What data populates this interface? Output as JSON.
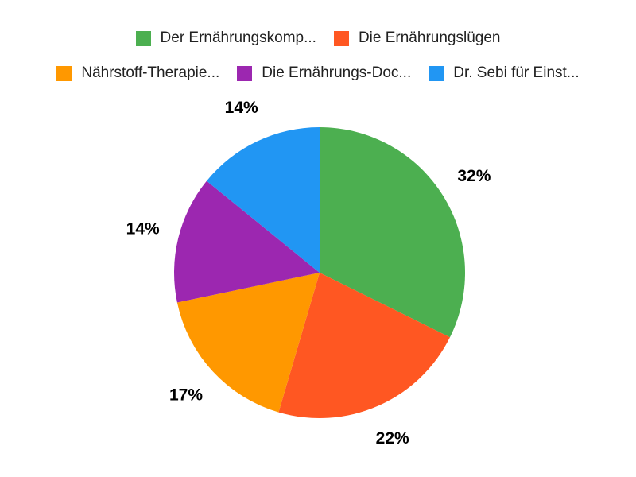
{
  "chart_data": {
    "type": "pie",
    "title": "",
    "series": [
      {
        "label": "Der Ernährungskomp...",
        "value": 32,
        "percent_label": "32%",
        "color": "#4CAF50"
      },
      {
        "label": "Die Ernährungslügen",
        "value": 22,
        "percent_label": "22%",
        "color": "#FF5722"
      },
      {
        "label": "Nährstoff-Therapie...",
        "value": 17,
        "percent_label": "17%",
        "color": "#FF9800"
      },
      {
        "label": "Die Ernährungs-Doc...",
        "value": 14,
        "percent_label": "14%",
        "color": "#9C27B0"
      },
      {
        "label": "Dr. Sebi für Einst...",
        "value": 14,
        "percent_label": "14%",
        "color": "#2196F3"
      }
    ],
    "legend_position": "top",
    "legend_rows": [
      2,
      3
    ],
    "start_angle_deg": 0,
    "direction": "clockwise",
    "slice_label_format": "percent",
    "legend_text_color": "#212121",
    "percent_label_color": "#000000",
    "background": "#FFFFFF"
  }
}
